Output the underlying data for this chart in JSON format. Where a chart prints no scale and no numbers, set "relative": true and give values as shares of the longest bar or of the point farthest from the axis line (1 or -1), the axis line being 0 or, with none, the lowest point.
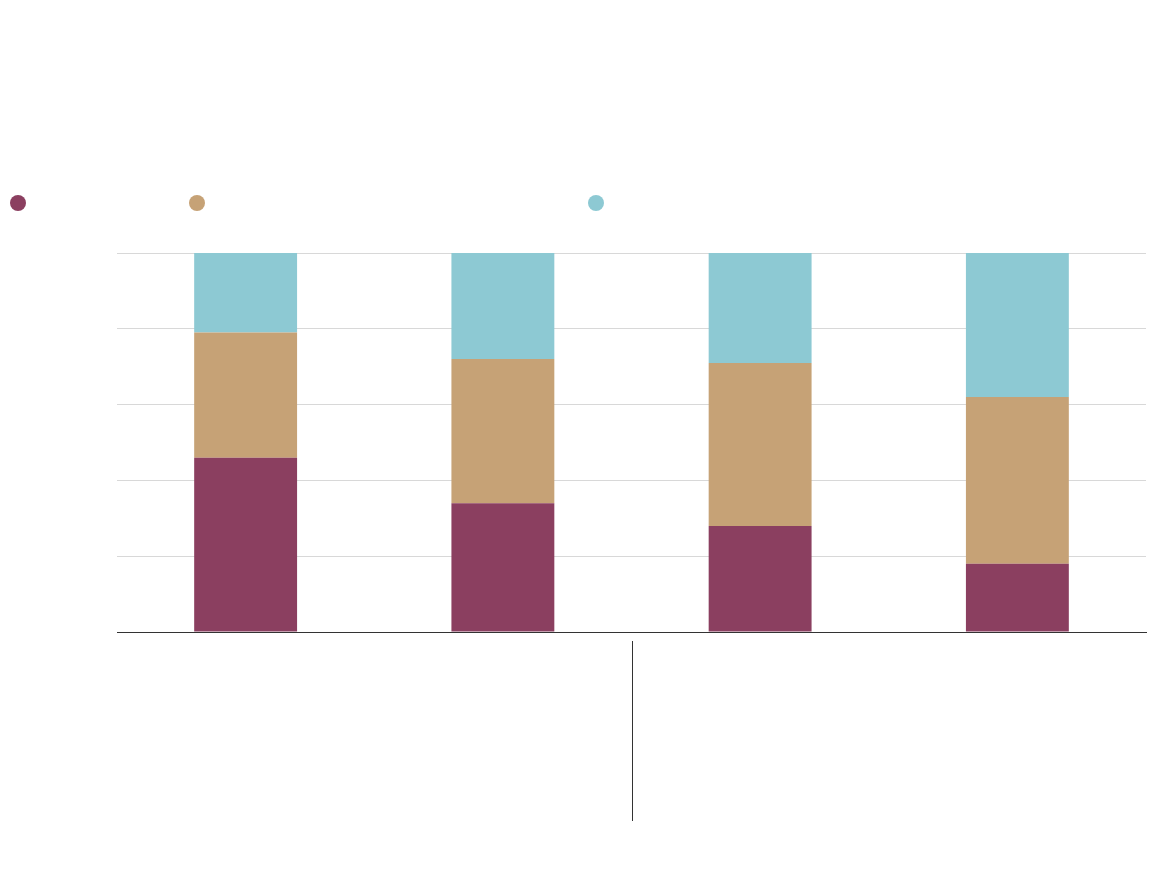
{
  "chart_data": {
    "type": "bar",
    "stacked": true,
    "relative": true,
    "grid": "y",
    "categories": [
      null,
      null,
      null,
      null
    ],
    "series": [
      {
        "color": "#8b3f60",
        "values": [
          0.46,
          0.34,
          0.28,
          0.18
        ]
      },
      {
        "color": "#c6a276",
        "values": [
          0.33,
          0.38,
          0.43,
          0.44
        ]
      },
      {
        "color": "#8dc9d3",
        "values": [
          0.21,
          0.28,
          0.29,
          0.38
        ]
      }
    ]
  }
}
